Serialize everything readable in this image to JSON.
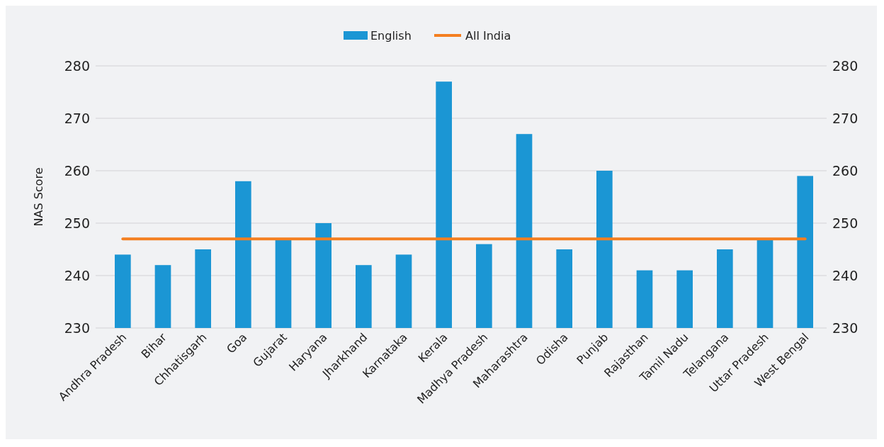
{
  "chart_data": {
    "type": "bar",
    "ylabel": "NAS Score",
    "categories": [
      "Andhra Pradesh",
      "Bihar",
      "Chhatisgarh",
      "Goa",
      "Gujarat",
      "Haryana",
      "Jharkhand",
      "Karnataka",
      "Kerala",
      "Madhya Pradesh",
      "Maharashtra",
      "Odisha",
      "Punjab",
      "Rajasthan",
      "Tamil Nadu",
      "Telangana",
      "Uttar Pradesh",
      "West Bengal"
    ],
    "series": [
      {
        "name": "English",
        "color": "#1b96d4",
        "values": [
          244,
          242,
          245,
          258,
          247,
          250,
          242,
          244,
          277,
          246,
          267,
          245,
          260,
          241,
          241,
          245,
          247,
          259
        ]
      },
      {
        "name": "All India",
        "type": "line",
        "color": "#f47f20",
        "values": [
          247,
          247,
          247,
          247,
          247,
          247,
          247,
          247,
          247,
          247,
          247,
          247,
          247,
          247,
          247,
          247,
          247,
          247
        ]
      }
    ],
    "ylim": [
      230,
      280
    ],
    "yticks": [
      230,
      240,
      250,
      260,
      270,
      280
    ],
    "y2lim": [
      230,
      280
    ],
    "y2ticks": [
      230,
      240,
      250,
      260,
      270,
      280
    ],
    "grid": "y",
    "legend": "top"
  }
}
